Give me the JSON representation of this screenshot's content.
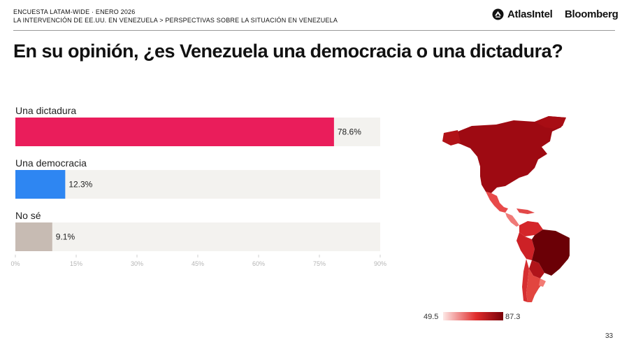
{
  "header": {
    "survey": "ENCUESTA LATAM-WIDE · ENERO 2026",
    "topic": "LA INTERVENCIÓN DE EE.UU. EN VENEZUELA > PERSPECTIVAS SOBRE LA SITUACIÓN EN VENEZUELA",
    "logo_atlas": "AtlasIntel",
    "logo_bloomberg": "Bloomberg"
  },
  "title": "En su opinión, ¿es Venezuela una democracia o una dictadura?",
  "page_number": "33",
  "chart_data": {
    "type": "bar",
    "orientation": "horizontal",
    "title": "En su opinión, ¿es Venezuela una democracia o una dictadura?",
    "categories": [
      "Una dictadura",
      "Una democracia",
      "No sé"
    ],
    "values": [
      78.6,
      12.3,
      9.1
    ],
    "value_labels": [
      "78.6%",
      "12.3%",
      "9.1%"
    ],
    "colors": [
      "#ea1d5b",
      "#2e86f2",
      "#c7bbb3"
    ],
    "track_color": "#f3f2ef",
    "xlim": [
      0,
      90
    ],
    "ticks": [
      0,
      15,
      30,
      45,
      60,
      75,
      90
    ],
    "tick_labels": [
      "0%",
      "15%",
      "30%",
      "45%",
      "60%",
      "75%",
      "90%"
    ],
    "xlabel": "",
    "ylabel": ""
  },
  "map_legend": {
    "min_label": "49.5",
    "max_label": "87.3",
    "color_low": "#fde8e6",
    "color_mid": "#e02c2c",
    "color_high": "#7a0008"
  }
}
